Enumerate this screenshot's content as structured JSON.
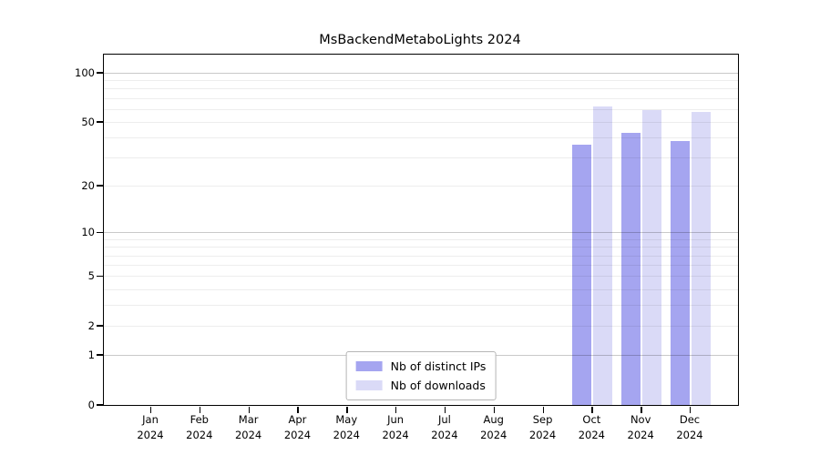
{
  "title": "MsBackendMetaboLights 2024",
  "chart_data": {
    "type": "bar",
    "title": "MsBackendMetaboLights 2024",
    "categories": [
      "Jan",
      "Feb",
      "Mar",
      "Apr",
      "May",
      "Jun",
      "Jul",
      "Aug",
      "Sep",
      "Oct",
      "Nov",
      "Dec"
    ],
    "year_label": "2024",
    "series": [
      {
        "name": "Nb of distinct IPs",
        "color": "#a5a5f0",
        "values": [
          null,
          null,
          null,
          null,
          null,
          null,
          null,
          null,
          null,
          36,
          43,
          38
        ]
      },
      {
        "name": "Nb of downloads",
        "color": "#dadaf7",
        "values": [
          null,
          null,
          null,
          null,
          null,
          null,
          null,
          null,
          null,
          62,
          59,
          58
        ]
      }
    ],
    "yscale": "log1p",
    "ylim": [
      0,
      129
    ],
    "yticks": [
      0,
      1,
      2,
      5,
      10,
      20,
      50,
      100
    ],
    "decade_gridlines": [
      1,
      10,
      100
    ],
    "minor_gridlines": [
      2,
      3,
      4,
      5,
      6,
      7,
      8,
      9,
      20,
      30,
      40,
      50,
      60,
      70,
      80,
      90
    ],
    "grid": true,
    "legend_position": "lower center",
    "xlabel": "",
    "ylabel": ""
  }
}
